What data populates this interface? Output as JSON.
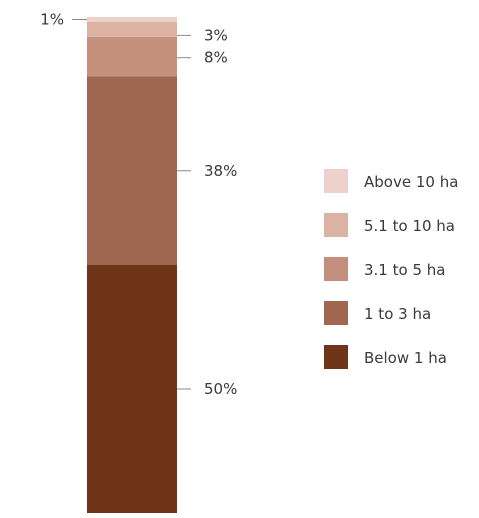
{
  "chart_data": {
    "type": "bar",
    "stacked": true,
    "orientation": "vertical",
    "categories": [
      ""
    ],
    "series": [
      {
        "name": "Below 1 ha",
        "values": [
          50
        ],
        "label": "50%",
        "color": "#6f3519"
      },
      {
        "name": "1 to 3 ha",
        "values": [
          38
        ],
        "label": "38%",
        "color": "#9f6650"
      },
      {
        "name": "3.1 to 5 ha",
        "values": [
          8
        ],
        "label": "8%",
        "color": "#c4907b"
      },
      {
        "name": "5.1 to 10 ha",
        "values": [
          3
        ],
        "label": "3%",
        "color": "#dcb2a3"
      },
      {
        "name": "Above 10 ha",
        "values": [
          1
        ],
        "label": "1%",
        "color": "#edd1ca"
      }
    ],
    "legend_order": [
      "Above 10 ha",
      "5.1 to 10 ha",
      "3.1 to 5 ha",
      "1 to 3 ha",
      "Below 1 ha"
    ],
    "legend_position": "right",
    "grid": false,
    "ylim": [
      0,
      100
    ],
    "title": "",
    "xlabel": "",
    "ylabel": ""
  }
}
